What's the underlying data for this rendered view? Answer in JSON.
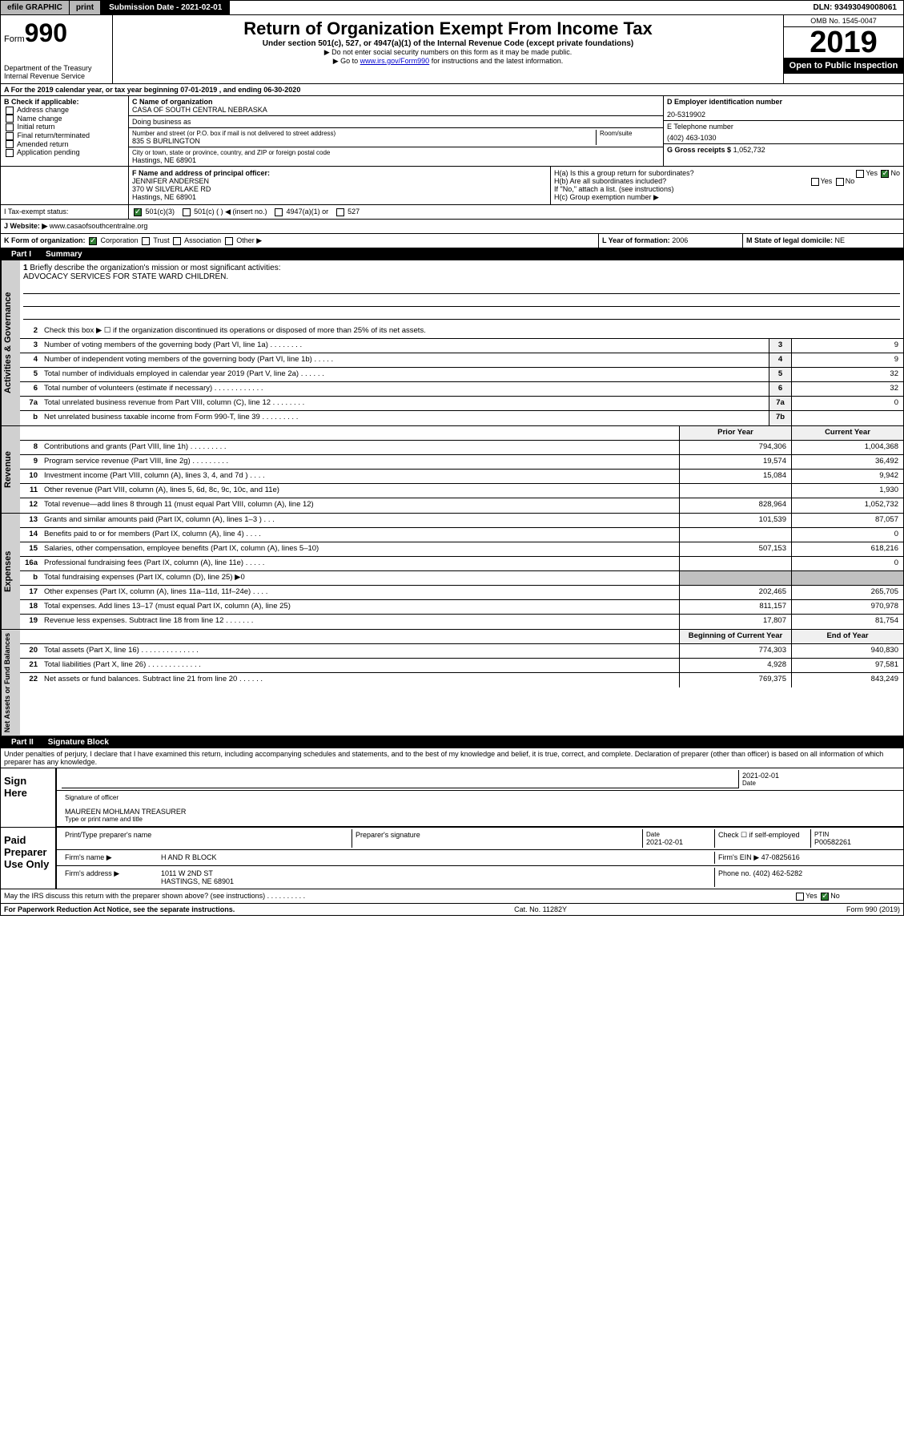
{
  "topbar": {
    "efile": "efile GRAPHIC",
    "print": "print",
    "submission_label": "Submission Date - 2021-02-01",
    "dln": "DLN: 93493049008061"
  },
  "header": {
    "form_prefix": "Form",
    "form_number": "990",
    "dept": "Department of the Treasury",
    "irs": "Internal Revenue Service",
    "title": "Return of Organization Exempt From Income Tax",
    "subtitle": "Under section 501(c), 527, or 4947(a)(1) of the Internal Revenue Code (except private foundations)",
    "note1": "▶ Do not enter social security numbers on this form as it may be made public.",
    "note2_pre": "▶ Go to ",
    "note2_link": "www.irs.gov/Form990",
    "note2_post": " for instructions and the latest information.",
    "omb": "OMB No. 1545-0047",
    "year": "2019",
    "open_public": "Open to Public Inspection"
  },
  "section_a": "A For the 2019 calendar year, or tax year beginning 07-01-2019    , and ending 06-30-2020",
  "section_b": {
    "title": "B Check if applicable:",
    "items": [
      "Address change",
      "Name change",
      "Initial return",
      "Final return/terminated",
      "Amended return",
      "Application pending"
    ]
  },
  "section_c": {
    "name_label": "C Name of organization",
    "name_value": "CASA OF SOUTH CENTRAL NEBRASKA",
    "dba_label": "Doing business as",
    "dba_value": "",
    "addr_label": "Number and street (or P.O. box if mail is not delivered to street address)",
    "room_label": "Room/suite",
    "addr_value": "835 S BURLINGTON",
    "city_label": "City or town, state or province, country, and ZIP or foreign postal code",
    "city_value": "Hastings, NE  68901"
  },
  "section_d": {
    "label": "D Employer identification number",
    "value": "20-5319902"
  },
  "section_e": {
    "label": "E Telephone number",
    "value": "(402) 463-1030"
  },
  "section_g": {
    "label": "G Gross receipts $",
    "value": "1,052,732"
  },
  "section_f": {
    "label": "F Name and address of principal officer:",
    "name": "JENNIFER ANDERSEN",
    "addr1": "370 W SILVERLAKE RD",
    "addr2": "Hastings, NE  68901"
  },
  "section_h": {
    "ha_label": "H(a)  Is this a group return for subordinates?",
    "hb_label": "H(b)  Are all subordinates included?",
    "hb_note": "If \"No,\" attach a list. (see instructions)",
    "hc_label": "H(c)  Group exemption number ▶",
    "yes": "Yes",
    "no": "No"
  },
  "section_i": {
    "label": "I  Tax-exempt status:",
    "opt1": "501(c)(3)",
    "opt2": "501(c) (   ) ◀ (insert no.)",
    "opt3": "4947(a)(1) or",
    "opt4": "527"
  },
  "section_j": {
    "label": "J  Website: ▶",
    "value": "www.casaofsouthcentralne.org"
  },
  "section_k": {
    "label": "K Form of organization:",
    "opts": [
      "Corporation",
      "Trust",
      "Association",
      "Other ▶"
    ]
  },
  "section_l": {
    "label": "L Year of formation:",
    "value": "2006"
  },
  "section_m": {
    "label": "M State of legal domicile:",
    "value": "NE"
  },
  "part1": {
    "header": "Part I",
    "title": "Summary",
    "line1_label": "Briefly describe the organization's mission or most significant activities:",
    "line1_value": "ADVOCACY SERVICES FOR STATE WARD CHILDREN.",
    "line2": "Check this box ▶ ☐  if the organization discontinued its operations or disposed of more than 25% of its net assets.",
    "rows_top": [
      {
        "n": "3",
        "text": "Number of voting members of the governing body (Part VI, line 1a)  .    .    .    .    .    .    .    .",
        "box": "3",
        "val": "9"
      },
      {
        "n": "4",
        "text": "Number of independent voting members of the governing body (Part VI, line 1b)   .    .    .    .    .",
        "box": "4",
        "val": "9"
      },
      {
        "n": "5",
        "text": "Total number of individuals employed in calendar year 2019 (Part V, line 2a)  .    .    .    .    .    .",
        "box": "5",
        "val": "32"
      },
      {
        "n": "6",
        "text": "Total number of volunteers (estimate if necessary)  .    .    .    .    .    .    .    .    .    .    .    .",
        "box": "6",
        "val": "32"
      },
      {
        "n": "7a",
        "text": "Total unrelated business revenue from Part VIII, column (C), line 12  .    .    .    .    .    .    .    .",
        "box": "7a",
        "val": "0"
      },
      {
        "n": "b",
        "text": "Net unrelated business taxable income from Form 990-T, line 39  .    .    .    .    .    .    .    .    .",
        "box": "7b",
        "val": ""
      }
    ],
    "col_prior": "Prior Year",
    "col_current": "Current Year",
    "revenue_rows": [
      {
        "n": "8",
        "text": "Contributions and grants (Part VIII, line 1h)  .    .    .    .    .    .    .    .    .",
        "p": "794,306",
        "c": "1,004,368"
      },
      {
        "n": "9",
        "text": "Program service revenue (Part VIII, line 2g)   .    .    .    .    .    .    .    .    .",
        "p": "19,574",
        "c": "36,492"
      },
      {
        "n": "10",
        "text": "Investment income (Part VIII, column (A), lines 3, 4, and 7d )   .    .    .    .",
        "p": "15,084",
        "c": "9,942"
      },
      {
        "n": "11",
        "text": "Other revenue (Part VIII, column (A), lines 5, 6d, 8c, 9c, 10c, and 11e)",
        "p": "",
        "c": "1,930"
      },
      {
        "n": "12",
        "text": "Total revenue—add lines 8 through 11 (must equal Part VIII, column (A), line 12)",
        "p": "828,964",
        "c": "1,052,732"
      }
    ],
    "expense_rows": [
      {
        "n": "13",
        "text": "Grants and similar amounts paid (Part IX, column (A), lines 1–3 )  .    .    .",
        "p": "101,539",
        "c": "87,057"
      },
      {
        "n": "14",
        "text": "Benefits paid to or for members (Part IX, column (A), line 4)  .    .    .    .",
        "p": "",
        "c": "0"
      },
      {
        "n": "15",
        "text": "Salaries, other compensation, employee benefits (Part IX, column (A), lines 5–10)",
        "p": "507,153",
        "c": "618,216"
      },
      {
        "n": "16a",
        "text": "Professional fundraising fees (Part IX, column (A), line 11e)  .    .    .    .    .",
        "p": "",
        "c": "0"
      },
      {
        "n": "b",
        "text": "Total fundraising expenses (Part IX, column (D), line 25) ▶0",
        "p": "GRAY",
        "c": "GRAY"
      },
      {
        "n": "17",
        "text": "Other expenses (Part IX, column (A), lines 11a–11d, 11f–24e)  .    .    .    .",
        "p": "202,465",
        "c": "265,705"
      },
      {
        "n": "18",
        "text": "Total expenses. Add lines 13–17 (must equal Part IX, column (A), line 25)",
        "p": "811,157",
        "c": "970,978"
      },
      {
        "n": "19",
        "text": "Revenue less expenses. Subtract line 18 from line 12   .    .    .    .    .    .    .",
        "p": "17,807",
        "c": "81,754"
      }
    ],
    "col_begin": "Beginning of Current Year",
    "col_end": "End of Year",
    "net_rows": [
      {
        "n": "20",
        "text": "Total assets (Part X, line 16)  .    .    .    .    .    .    .    .    .    .    .    .    .    .",
        "p": "774,303",
        "c": "940,830"
      },
      {
        "n": "21",
        "text": "Total liabilities (Part X, line 26)  .    .    .    .    .    .    .    .    .    .    .    .    .",
        "p": "4,928",
        "c": "97,581"
      },
      {
        "n": "22",
        "text": "Net assets or fund balances. Subtract line 21 from line 20  .    .    .    .    .    .",
        "p": "769,375",
        "c": "843,249"
      }
    ]
  },
  "side_labels": {
    "gov": "Activities & Governance",
    "rev": "Revenue",
    "exp": "Expenses",
    "net": "Net Assets or Fund Balances"
  },
  "part2": {
    "header": "Part II",
    "title": "Signature Block",
    "penalty": "Under penalties of perjury, I declare that I have examined this return, including accompanying schedules and statements, and to the best of my knowledge and belief, it is true, correct, and complete. Declaration of preparer (other than officer) is based on all information of which preparer has any knowledge.",
    "sign_here": "Sign Here",
    "sig_officer": "Signature of officer",
    "date1": "2021-02-01",
    "date_label": "Date",
    "officer_name": "MAUREEN MOHLMAN TREASURER",
    "type_name": "Type or print name and title",
    "paid_preparer": "Paid Preparer Use Only",
    "prep_name_label": "Print/Type preparer's name",
    "prep_sig_label": "Preparer's signature",
    "prep_date": "2021-02-01",
    "check_self": "Check ☐ if self-employed",
    "ptin_label": "PTIN",
    "ptin": "P00582261",
    "firm_name_label": "Firm's name    ▶",
    "firm_name": "H AND R BLOCK",
    "firm_ein_label": "Firm's EIN ▶",
    "firm_ein": "47-0825616",
    "firm_addr_label": "Firm's address ▶",
    "firm_addr1": "1011 W 2ND ST",
    "firm_addr2": "HASTINGS, NE  68901",
    "phone_label": "Phone no.",
    "phone": "(402) 462-5282",
    "discuss": "May the IRS discuss this return with the preparer shown above? (see instructions)   .    .    .    .    .    .    .    .    .    .",
    "yes": "Yes",
    "no": "No"
  },
  "footer": {
    "paperwork": "For Paperwork Reduction Act Notice, see the separate instructions.",
    "cat": "Cat. No. 11282Y",
    "form": "Form 990 (2019)"
  }
}
